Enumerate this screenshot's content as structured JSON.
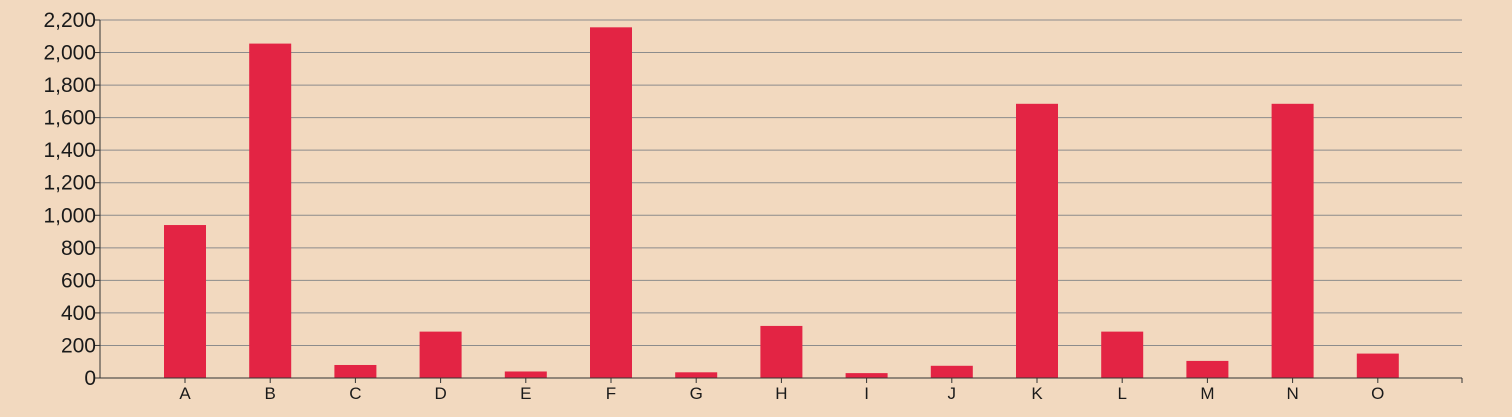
{
  "chart_data": {
    "type": "bar",
    "title": "",
    "xlabel": "",
    "ylabel": "",
    "categories": [
      "A",
      "B",
      "C",
      "D",
      "E",
      "F",
      "G",
      "H",
      "I",
      "J",
      "K",
      "L",
      "M",
      "N",
      "O"
    ],
    "values": [
      940,
      2055,
      80,
      285,
      40,
      2155,
      35,
      320,
      30,
      75,
      1685,
      285,
      105,
      1685,
      150
    ],
    "ylim": [
      0,
      2200
    ],
    "yticks": [
      0,
      200,
      400,
      600,
      800,
      1000,
      1200,
      1400,
      1600,
      1800,
      2000,
      2200
    ],
    "ytick_labels": [
      "0",
      "200",
      "400",
      "600",
      "800",
      "1,000",
      "1,200",
      "1,400",
      "1,600",
      "1,800",
      "2,000",
      "2,200"
    ],
    "grid": true,
    "legend": "none",
    "colors": {
      "bar": "#e32444",
      "background": "#f2d9bf",
      "grid": "#8c8c8c",
      "axis": "#333333"
    }
  }
}
